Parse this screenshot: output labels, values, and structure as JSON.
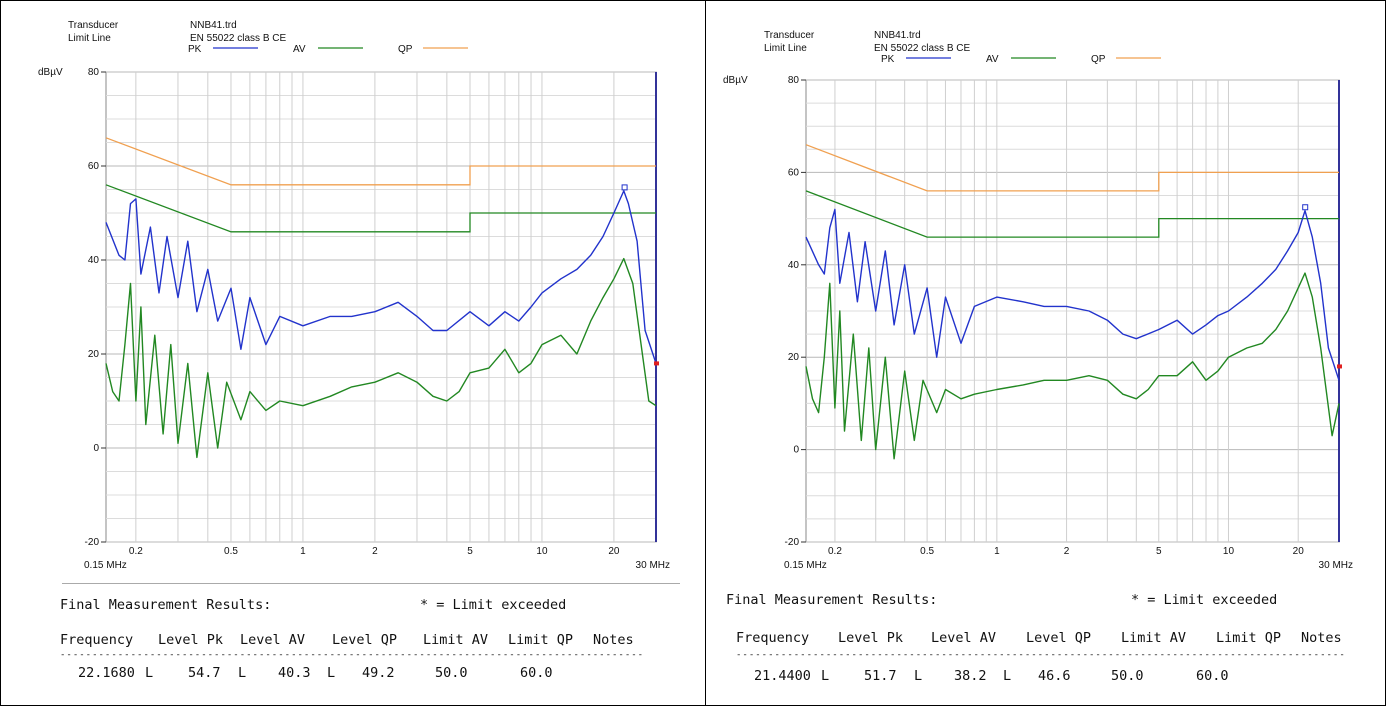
{
  "chart_data": [
    {
      "type": "line",
      "x_scale": "log",
      "header": {
        "transducer_label": "Transducer",
        "transducer_value": "NNB41.trd",
        "limit_label": "Limit Line",
        "limit_value": "EN 55022 class B CE"
      },
      "legend": [
        {
          "name": "PK",
          "color": "#2233cc"
        },
        {
          "name": "AV",
          "color": "#228822"
        },
        {
          "name": "QP",
          "color": "#f0a050"
        }
      ],
      "ylabel": "dBµV",
      "ylim": [
        -20,
        80
      ],
      "xlim": [
        0.15,
        30
      ],
      "y_ticks": [
        "80",
        "60",
        "40",
        "20",
        "0",
        "-20"
      ],
      "x_ticks": [
        "0.2",
        "0.5",
        "1",
        "2",
        "5",
        "10",
        "20"
      ],
      "x_start_label": "0.15 MHz",
      "x_end_label": "30 MHz",
      "grid": true,
      "limits": {
        "QP": [
          [
            0.15,
            66
          ],
          [
            0.5,
            56
          ],
          [
            5,
            56
          ],
          [
            5,
            60
          ],
          [
            30,
            60
          ]
        ],
        "AV": [
          [
            0.15,
            56
          ],
          [
            0.5,
            46
          ],
          [
            5,
            46
          ],
          [
            5,
            50
          ],
          [
            30,
            50
          ]
        ]
      },
      "series": [
        {
          "name": "PK",
          "x": [
            0.15,
            0.17,
            0.18,
            0.19,
            0.2,
            0.21,
            0.23,
            0.25,
            0.27,
            0.3,
            0.33,
            0.36,
            0.4,
            0.44,
            0.5,
            0.55,
            0.6,
            0.7,
            0.8,
            1.0,
            1.3,
            1.6,
            2.0,
            2.5,
            3.0,
            3.5,
            4.0,
            5.0,
            6.0,
            7.0,
            8.0,
            9.0,
            10.0,
            12.0,
            14.0,
            16.0,
            18.0,
            20.0,
            22.0,
            23.0,
            25.0,
            27.0,
            30.0
          ],
          "values": [
            48,
            41,
            40,
            52,
            53,
            37,
            47,
            33,
            45,
            32,
            44,
            29,
            38,
            27,
            34,
            21,
            32,
            22,
            28,
            26,
            28,
            28,
            29,
            31,
            28,
            25,
            25,
            29,
            26,
            29,
            27,
            30,
            33,
            36,
            38,
            41,
            45,
            50,
            54.7,
            52,
            44,
            25,
            18
          ]
        },
        {
          "name": "AV",
          "x": [
            0.15,
            0.16,
            0.17,
            0.18,
            0.19,
            0.2,
            0.21,
            0.22,
            0.24,
            0.26,
            0.28,
            0.3,
            0.33,
            0.36,
            0.4,
            0.44,
            0.48,
            0.55,
            0.6,
            0.7,
            0.8,
            1.0,
            1.3,
            1.6,
            2.0,
            2.5,
            3.0,
            3.5,
            4.0,
            4.5,
            5.0,
            6.0,
            7.0,
            8.0,
            9.0,
            10.0,
            12.0,
            14.0,
            16.0,
            18.0,
            20.0,
            22.0,
            24.0,
            26.0,
            28.0,
            30.0
          ],
          "values": [
            18,
            12,
            10,
            22,
            35,
            10,
            30,
            5,
            24,
            3,
            22,
            1,
            18,
            -2,
            16,
            0,
            14,
            6,
            12,
            8,
            10,
            9,
            11,
            13,
            14,
            16,
            14,
            11,
            10,
            12,
            16,
            17,
            21,
            16,
            18,
            22,
            24,
            20,
            27,
            32,
            36,
            40.3,
            35,
            22,
            10,
            9
          ]
        }
      ],
      "results": {
        "title": "Final Measurement Results:",
        "limit_note": "* = Limit exceeded",
        "headers": [
          "Frequency",
          "Level Pk",
          "Level AV",
          "Level QP",
          "Limit AV",
          "Limit QP",
          "Notes"
        ],
        "rows": [
          {
            "frequency": "22.1680",
            "pk_flag": "L",
            "level_pk": "54.7",
            "av_flag": "L",
            "level_av": "40.3",
            "qp_flag": "L",
            "level_qp": "49.2",
            "limit_av": "50.0",
            "limit_qp": "60.0",
            "notes": ""
          }
        ]
      }
    },
    {
      "type": "line",
      "x_scale": "log",
      "header": {
        "transducer_label": "Transducer",
        "transducer_value": "NNB41.trd",
        "limit_label": "Limit Line",
        "limit_value": "EN 55022 class B CE"
      },
      "legend": [
        {
          "name": "PK",
          "color": "#2233cc"
        },
        {
          "name": "AV",
          "color": "#228822"
        },
        {
          "name": "QP",
          "color": "#f0a050"
        }
      ],
      "ylabel": "dBµV",
      "ylim": [
        -20,
        80
      ],
      "xlim": [
        0.15,
        30
      ],
      "y_ticks": [
        "80",
        "60",
        "40",
        "20",
        "0",
        "-20"
      ],
      "x_ticks": [
        "0.2",
        "0.5",
        "1",
        "2",
        "5",
        "10",
        "20"
      ],
      "x_start_label": "0.15 MHz",
      "x_end_label": "30 MHz",
      "grid": true,
      "limits": {
        "QP": [
          [
            0.15,
            66
          ],
          [
            0.5,
            56
          ],
          [
            5,
            56
          ],
          [
            5,
            60
          ],
          [
            30,
            60
          ]
        ],
        "AV": [
          [
            0.15,
            56
          ],
          [
            0.5,
            46
          ],
          [
            5,
            46
          ],
          [
            5,
            50
          ],
          [
            30,
            50
          ]
        ]
      },
      "series": [
        {
          "name": "PK",
          "x": [
            0.15,
            0.17,
            0.18,
            0.19,
            0.2,
            0.21,
            0.23,
            0.25,
            0.27,
            0.3,
            0.33,
            0.36,
            0.4,
            0.44,
            0.5,
            0.55,
            0.6,
            0.7,
            0.8,
            1.0,
            1.3,
            1.6,
            2.0,
            2.5,
            3.0,
            3.5,
            4.0,
            5.0,
            6.0,
            7.0,
            8.0,
            9.0,
            10.0,
            12.0,
            14.0,
            16.0,
            18.0,
            20.0,
            21.4,
            23.0,
            25.0,
            27.0,
            30.0
          ],
          "values": [
            46,
            40,
            38,
            48,
            52,
            36,
            47,
            32,
            45,
            30,
            43,
            27,
            40,
            25,
            35,
            20,
            33,
            23,
            31,
            33,
            32,
            31,
            31,
            30,
            28,
            25,
            24,
            26,
            28,
            25,
            27,
            29,
            30,
            33,
            36,
            39,
            43,
            47,
            51.7,
            46,
            36,
            22,
            15
          ]
        },
        {
          "name": "AV",
          "x": [
            0.15,
            0.16,
            0.17,
            0.18,
            0.19,
            0.2,
            0.21,
            0.22,
            0.24,
            0.26,
            0.28,
            0.3,
            0.33,
            0.36,
            0.4,
            0.44,
            0.48,
            0.55,
            0.6,
            0.7,
            0.8,
            1.0,
            1.3,
            1.6,
            2.0,
            2.5,
            3.0,
            3.5,
            4.0,
            4.5,
            5.0,
            6.0,
            7.0,
            8.0,
            9.0,
            10.0,
            12.0,
            14.0,
            16.0,
            18.0,
            20.0,
            21.4,
            23.0,
            25.0,
            28.0,
            30.0
          ],
          "values": [
            18,
            11,
            8,
            20,
            36,
            9,
            30,
            4,
            25,
            2,
            22,
            0,
            20,
            -2,
            17,
            2,
            15,
            8,
            13,
            11,
            12,
            13,
            14,
            15,
            15,
            16,
            15,
            12,
            11,
            13,
            16,
            16,
            19,
            15,
            17,
            20,
            22,
            23,
            26,
            30,
            35,
            38.2,
            33,
            22,
            3,
            10
          ]
        }
      ],
      "results": {
        "title": "Final Measurement Results:",
        "limit_note": "* = Limit exceeded",
        "headers": [
          "Frequency",
          "Level Pk",
          "Level AV",
          "Level QP",
          "Limit AV",
          "Limit QP",
          "Notes"
        ],
        "rows": [
          {
            "frequency": "21.4400",
            "pk_flag": "L",
            "level_pk": "51.7",
            "av_flag": "L",
            "level_av": "38.2",
            "qp_flag": "L",
            "level_qp": "46.6",
            "limit_av": "50.0",
            "limit_qp": "60.0",
            "notes": ""
          }
        ]
      }
    }
  ]
}
